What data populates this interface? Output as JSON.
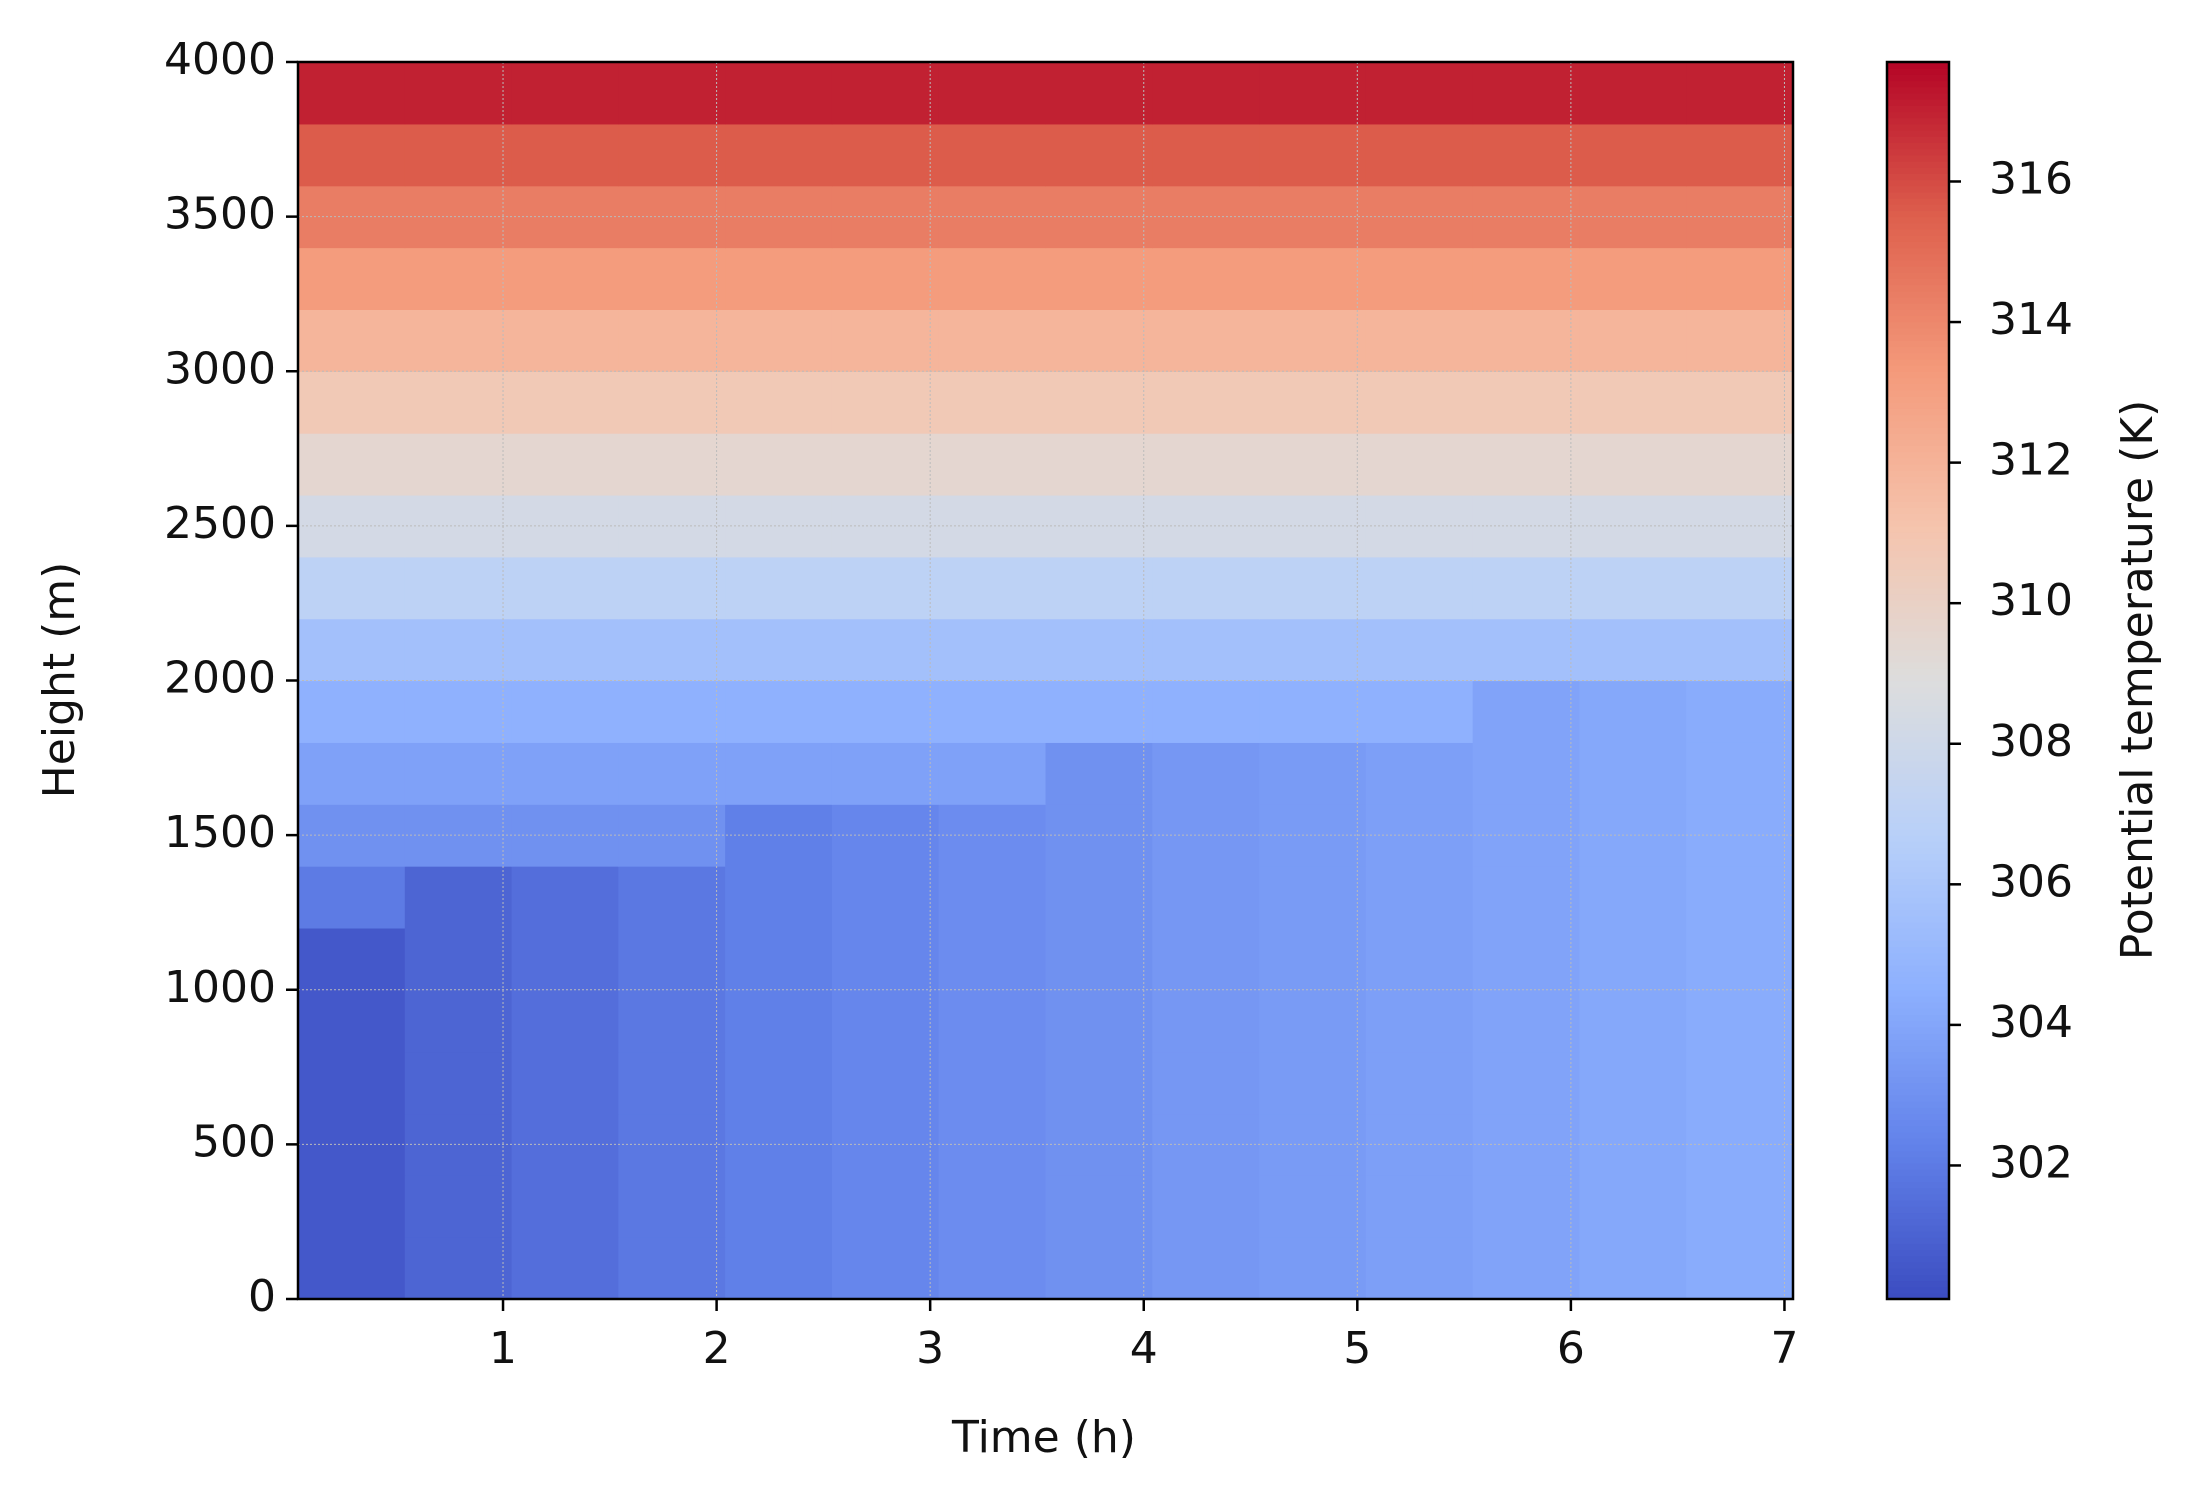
{
  "chart_data": {
    "type": "heatmap",
    "xlabel": "Time (h)",
    "ylabel": "Height (m)",
    "colorbar_label": "Potential temperature (K)",
    "colormap": "coolwarm",
    "x_edges": [
      0.04,
      0.54,
      1.04,
      1.54,
      2.04,
      2.54,
      3.04,
      3.54,
      4.04,
      4.54,
      5.04,
      5.54,
      6.04,
      6.54,
      7.04
    ],
    "y_edges": [
      0,
      200,
      400,
      600,
      800,
      1000,
      1200,
      1400,
      1600,
      1800,
      2000,
      2200,
      2400,
      2600,
      2800,
      3000,
      3200,
      3400,
      3600,
      3800,
      4000
    ],
    "z": [
      [
        300.6,
        301.1,
        301.5,
        301.9,
        302.2,
        302.5,
        302.8,
        303.0,
        303.3,
        303.5,
        303.7,
        303.9,
        304.1,
        304.3
      ],
      [
        300.6,
        301.1,
        301.5,
        301.9,
        302.2,
        302.5,
        302.8,
        303.0,
        303.3,
        303.5,
        303.7,
        303.9,
        304.1,
        304.3
      ],
      [
        300.6,
        301.1,
        301.5,
        301.9,
        302.2,
        302.5,
        302.8,
        303.0,
        303.3,
        303.5,
        303.7,
        303.9,
        304.1,
        304.3
      ],
      [
        300.6,
        301.1,
        301.5,
        301.9,
        302.2,
        302.5,
        302.8,
        303.0,
        303.3,
        303.5,
        303.7,
        303.9,
        304.1,
        304.3
      ],
      [
        300.6,
        301.1,
        301.5,
        301.9,
        302.2,
        302.5,
        302.8,
        303.0,
        303.3,
        303.5,
        303.7,
        303.9,
        304.1,
        304.3
      ],
      [
        300.6,
        301.1,
        301.5,
        301.9,
        302.2,
        302.5,
        302.8,
        303.0,
        303.3,
        303.5,
        303.7,
        303.9,
        304.1,
        304.3
      ],
      [
        302.0,
        301.1,
        301.5,
        301.9,
        302.2,
        302.5,
        302.8,
        303.0,
        303.3,
        303.5,
        303.7,
        303.9,
        304.1,
        304.3
      ],
      [
        303.0,
        303.0,
        303.0,
        303.0,
        302.2,
        302.5,
        302.8,
        303.0,
        303.3,
        303.5,
        303.7,
        303.9,
        304.1,
        304.3
      ],
      [
        303.8,
        303.8,
        303.8,
        303.8,
        303.8,
        303.8,
        303.8,
        303.0,
        303.3,
        303.5,
        303.7,
        303.9,
        304.1,
        304.3
      ],
      [
        304.6,
        304.6,
        304.6,
        304.6,
        304.6,
        304.6,
        304.6,
        304.6,
        304.6,
        304.6,
        304.6,
        303.9,
        304.1,
        304.3
      ],
      [
        305.6,
        305.6,
        305.6,
        305.6,
        305.6,
        305.6,
        305.6,
        305.6,
        305.6,
        305.6,
        305.6,
        305.6,
        305.6,
        305.6
      ],
      [
        307.0,
        307.0,
        307.0,
        307.0,
        307.0,
        307.0,
        307.0,
        307.0,
        307.0,
        307.0,
        307.0,
        307.0,
        307.0,
        307.0
      ],
      [
        308.3,
        308.3,
        308.3,
        308.3,
        308.3,
        308.3,
        308.3,
        308.3,
        308.3,
        308.3,
        308.3,
        308.3,
        308.3,
        308.3
      ],
      [
        309.5,
        309.5,
        309.5,
        309.5,
        309.5,
        309.5,
        309.5,
        309.5,
        309.5,
        309.5,
        309.5,
        309.5,
        309.5,
        309.5
      ],
      [
        310.7,
        310.7,
        310.7,
        310.7,
        310.7,
        310.7,
        310.7,
        310.7,
        310.7,
        310.7,
        310.7,
        310.7,
        310.7,
        310.7
      ],
      [
        311.9,
        311.9,
        311.9,
        311.9,
        311.9,
        311.9,
        311.9,
        311.9,
        311.9,
        311.9,
        311.9,
        311.9,
        311.9,
        311.9
      ],
      [
        313.2,
        313.2,
        313.2,
        313.2,
        313.2,
        313.2,
        313.2,
        313.2,
        313.2,
        313.2,
        313.2,
        313.2,
        313.2,
        313.2
      ],
      [
        314.4,
        314.4,
        314.4,
        314.4,
        314.4,
        314.4,
        314.4,
        314.4,
        314.4,
        314.4,
        314.4,
        314.4,
        314.4,
        314.4
      ],
      [
        315.6,
        315.6,
        315.6,
        315.6,
        315.6,
        315.6,
        315.6,
        315.6,
        315.6,
        315.6,
        315.6,
        315.6,
        315.6,
        315.6
      ],
      [
        317.0,
        317.0,
        317.0,
        317.0,
        317.0,
        317.0,
        317.0,
        317.0,
        317.0,
        317.0,
        317.0,
        317.0,
        317.0,
        317.0
      ]
    ],
    "xlim": [
      0.04,
      7.04
    ],
    "xticks": [
      1,
      2,
      3,
      4,
      5,
      6,
      7
    ],
    "ylim": [
      0,
      4000
    ],
    "yticks": [
      0,
      500,
      1000,
      1500,
      2000,
      2500,
      3000,
      3500,
      4000
    ],
    "clim": [
      300.1,
      317.7
    ],
    "cticks": [
      302,
      304,
      306,
      308,
      310,
      312,
      314,
      316
    ],
    "grid": true
  }
}
